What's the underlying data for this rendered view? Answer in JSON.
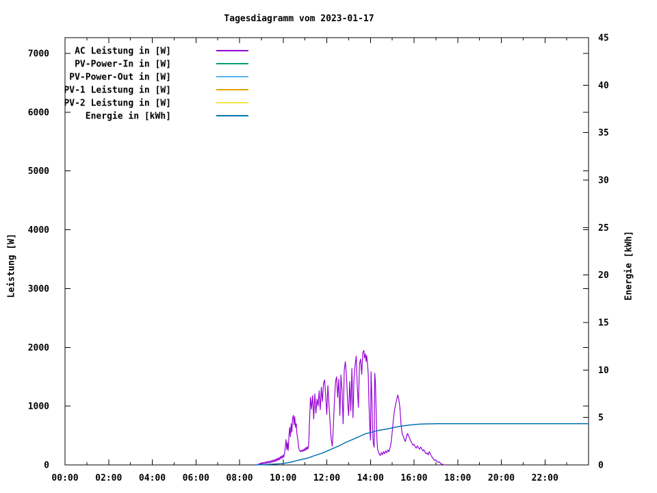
{
  "chart_data": {
    "type": "line",
    "title": "Tagesdiagramm vom 2023-01-17",
    "grid": false,
    "legend_position": "top-left",
    "background_color": "#ffffff",
    "axis_color": "#000000",
    "x_axis": {
      "label": "",
      "unit": "time-of-day",
      "range_hours": [
        0,
        24
      ],
      "major_tick_every_hours": 2,
      "minor_tick_every_hours": 1,
      "tick_labels": [
        "00:00",
        "02:00",
        "04:00",
        "06:00",
        "08:00",
        "10:00",
        "12:00",
        "14:00",
        "16:00",
        "18:00",
        "20:00",
        "22:00"
      ]
    },
    "y_left": {
      "label": "Leistung [W]",
      "range": [
        0,
        7268
      ],
      "ticks": [
        0,
        1000,
        2000,
        3000,
        4000,
        5000,
        6000,
        7000
      ]
    },
    "y_right": {
      "label": "Energie [kWh]",
      "range": [
        0,
        45
      ],
      "ticks": [
        0,
        5,
        10,
        15,
        20,
        25,
        30,
        35,
        40,
        45
      ]
    },
    "series": [
      {
        "name": "AC Leistung in [W]",
        "color": "#9400d3",
        "axis": "left",
        "points": [
          [
            8.85,
            5
          ],
          [
            8.88,
            18
          ],
          [
            8.9,
            8
          ],
          [
            8.93,
            28
          ],
          [
            8.97,
            12
          ],
          [
            9.0,
            35
          ],
          [
            9.03,
            15
          ],
          [
            9.07,
            40
          ],
          [
            9.1,
            20
          ],
          [
            9.13,
            45
          ],
          [
            9.17,
            25
          ],
          [
            9.2,
            52
          ],
          [
            9.23,
            28
          ],
          [
            9.27,
            58
          ],
          [
            9.3,
            32
          ],
          [
            9.33,
            62
          ],
          [
            9.37,
            35
          ],
          [
            9.4,
            68
          ],
          [
            9.43,
            40
          ],
          [
            9.47,
            75
          ],
          [
            9.5,
            45
          ],
          [
            9.53,
            82
          ],
          [
            9.57,
            52
          ],
          [
            9.6,
            90
          ],
          [
            9.63,
            58
          ],
          [
            9.67,
            100
          ],
          [
            9.7,
            68
          ],
          [
            9.73,
            112
          ],
          [
            9.77,
            78
          ],
          [
            9.8,
            125
          ],
          [
            9.83,
            90
          ],
          [
            9.87,
            140
          ],
          [
            9.9,
            105
          ],
          [
            9.93,
            155
          ],
          [
            9.97,
            118
          ],
          [
            10.0,
            170
          ],
          [
            10.03,
            135
          ],
          [
            10.07,
            210
          ],
          [
            10.1,
            300
          ],
          [
            10.13,
            430
          ],
          [
            10.17,
            260
          ],
          [
            10.2,
            380
          ],
          [
            10.23,
            245
          ],
          [
            10.27,
            520
          ],
          [
            10.3,
            640
          ],
          [
            10.33,
            480
          ],
          [
            10.37,
            700
          ],
          [
            10.4,
            560
          ],
          [
            10.43,
            790
          ],
          [
            10.47,
            845
          ],
          [
            10.5,
            680
          ],
          [
            10.53,
            820
          ],
          [
            10.57,
            640
          ],
          [
            10.6,
            700
          ],
          [
            10.63,
            540
          ],
          [
            10.67,
            430
          ],
          [
            10.7,
            330
          ],
          [
            10.73,
            265
          ],
          [
            10.77,
            235
          ],
          [
            10.8,
            225
          ],
          [
            10.83,
            250
          ],
          [
            10.87,
            228
          ],
          [
            10.9,
            260
          ],
          [
            10.93,
            235
          ],
          [
            10.97,
            272
          ],
          [
            11.0,
            242
          ],
          [
            11.03,
            295
          ],
          [
            11.07,
            260
          ],
          [
            11.1,
            310
          ],
          [
            11.13,
            272
          ],
          [
            11.17,
            330
          ],
          [
            11.2,
            650
          ],
          [
            11.25,
            1150
          ],
          [
            11.3,
            950
          ],
          [
            11.35,
            1180
          ],
          [
            11.4,
            780
          ],
          [
            11.45,
            1210
          ],
          [
            11.5,
            880
          ],
          [
            11.55,
            1120
          ],
          [
            11.6,
            1000
          ],
          [
            11.65,
            1260
          ],
          [
            11.7,
            940
          ],
          [
            11.75,
            1320
          ],
          [
            11.8,
            1080
          ],
          [
            11.85,
            1390
          ],
          [
            11.9,
            1444
          ],
          [
            11.95,
            1180
          ],
          [
            12.0,
            860
          ],
          [
            12.05,
            1350
          ],
          [
            12.1,
            1020
          ],
          [
            12.15,
            720
          ],
          [
            12.2,
            440
          ],
          [
            12.25,
            318
          ],
          [
            12.3,
            650
          ],
          [
            12.35,
            1100
          ],
          [
            12.4,
            1420
          ],
          [
            12.45,
            1500
          ],
          [
            12.5,
            1150
          ],
          [
            12.55,
            1460
          ],
          [
            12.6,
            840
          ],
          [
            12.65,
            1530
          ],
          [
            12.7,
            1250
          ],
          [
            12.75,
            700
          ],
          [
            12.8,
            1610
          ],
          [
            12.85,
            1758
          ],
          [
            12.9,
            1520
          ],
          [
            12.95,
            1100
          ],
          [
            13.0,
            840
          ],
          [
            13.05,
            1420
          ],
          [
            13.1,
            920
          ],
          [
            13.15,
            1640
          ],
          [
            13.2,
            803
          ],
          [
            13.25,
            1480
          ],
          [
            13.3,
            1700
          ],
          [
            13.35,
            1850
          ],
          [
            13.4,
            1320
          ],
          [
            13.45,
            980
          ],
          [
            13.5,
            1720
          ],
          [
            13.55,
            1800
          ],
          [
            13.6,
            1540
          ],
          [
            13.65,
            1905
          ],
          [
            13.7,
            1948
          ],
          [
            13.73,
            1820
          ],
          [
            13.77,
            1890
          ],
          [
            13.8,
            1760
          ],
          [
            13.83,
            1860
          ],
          [
            13.87,
            1700
          ],
          [
            13.9,
            1540
          ],
          [
            13.93,
            1100
          ],
          [
            13.97,
            660
          ],
          [
            14.0,
            420
          ],
          [
            14.03,
            1583
          ],
          [
            14.07,
            1100
          ],
          [
            14.1,
            600
          ],
          [
            14.13,
            376
          ],
          [
            14.17,
            300
          ],
          [
            14.2,
            1560
          ],
          [
            14.23,
            1400
          ],
          [
            14.27,
            800
          ],
          [
            14.3,
            420
          ],
          [
            14.33,
            260
          ],
          [
            14.4,
            190
          ],
          [
            14.45,
            160
          ],
          [
            14.5,
            210
          ],
          [
            14.55,
            175
          ],
          [
            14.6,
            225
          ],
          [
            14.65,
            190
          ],
          [
            14.7,
            240
          ],
          [
            14.75,
            205
          ],
          [
            14.8,
            255
          ],
          [
            14.85,
            225
          ],
          [
            14.9,
            290
          ],
          [
            14.95,
            380
          ],
          [
            15.0,
            560
          ],
          [
            15.05,
            760
          ],
          [
            15.1,
            920
          ],
          [
            15.15,
            1020
          ],
          [
            15.2,
            1100
          ],
          [
            15.25,
            1190
          ],
          [
            15.3,
            1120
          ],
          [
            15.35,
            980
          ],
          [
            15.4,
            700
          ],
          [
            15.45,
            540
          ],
          [
            15.5,
            490
          ],
          [
            15.55,
            440
          ],
          [
            15.6,
            400
          ],
          [
            15.65,
            470
          ],
          [
            15.7,
            535
          ],
          [
            15.75,
            500
          ],
          [
            15.8,
            450
          ],
          [
            15.85,
            410
          ],
          [
            15.9,
            370
          ],
          [
            15.95,
            335
          ],
          [
            16.0,
            350
          ],
          [
            16.05,
            310
          ],
          [
            16.1,
            285
          ],
          [
            16.15,
            325
          ],
          [
            16.2,
            295
          ],
          [
            16.25,
            265
          ],
          [
            16.3,
            305
          ],
          [
            16.35,
            275
          ],
          [
            16.4,
            240
          ],
          [
            16.45,
            258
          ],
          [
            16.5,
            220
          ],
          [
            16.55,
            190
          ],
          [
            16.6,
            205
          ],
          [
            16.65,
            170
          ],
          [
            16.7,
            225
          ],
          [
            16.75,
            185
          ],
          [
            16.8,
            150
          ],
          [
            16.85,
            118
          ],
          [
            16.9,
            95
          ],
          [
            16.95,
            75
          ],
          [
            17.0,
            85
          ],
          [
            17.05,
            62
          ],
          [
            17.1,
            45
          ],
          [
            17.15,
            55
          ],
          [
            17.2,
            32
          ],
          [
            17.25,
            18
          ],
          [
            17.3,
            10
          ],
          [
            17.35,
            5
          ],
          [
            17.4,
            2
          ],
          [
            17.45,
            0
          ]
        ]
      },
      {
        "name": "PV-Power-In in [W]",
        "color": "#009e73",
        "axis": "left",
        "points": []
      },
      {
        "name": "PV-Power-Out in [W]",
        "color": "#56b4e9",
        "axis": "left",
        "points": []
      },
      {
        "name": "PV-1 Leistung in [W]",
        "color": "#e69f00",
        "axis": "left",
        "points": []
      },
      {
        "name": "PV-2 Leistung in [W]",
        "color": "#f0e442",
        "axis": "left",
        "points": []
      },
      {
        "name": "Energie in [kWh]",
        "color": "#0072b2",
        "axis": "right",
        "points": [
          [
            8.7,
            0.0
          ],
          [
            9.0,
            0.02
          ],
          [
            9.3,
            0.05
          ],
          [
            9.6,
            0.09
          ],
          [
            9.9,
            0.13
          ],
          [
            10.0,
            0.15
          ],
          [
            10.2,
            0.22
          ],
          [
            10.4,
            0.32
          ],
          [
            10.6,
            0.45
          ],
          [
            10.8,
            0.55
          ],
          [
            11.0,
            0.65
          ],
          [
            11.2,
            0.78
          ],
          [
            11.4,
            0.95
          ],
          [
            11.6,
            1.1
          ],
          [
            11.8,
            1.25
          ],
          [
            12.0,
            1.45
          ],
          [
            12.2,
            1.65
          ],
          [
            12.4,
            1.85
          ],
          [
            12.6,
            2.05
          ],
          [
            12.8,
            2.3
          ],
          [
            13.0,
            2.5
          ],
          [
            13.2,
            2.7
          ],
          [
            13.4,
            2.9
          ],
          [
            13.6,
            3.1
          ],
          [
            13.8,
            3.3
          ],
          [
            14.0,
            3.4
          ],
          [
            14.2,
            3.55
          ],
          [
            14.4,
            3.65
          ],
          [
            14.6,
            3.72
          ],
          [
            14.8,
            3.8
          ],
          [
            15.0,
            3.9
          ],
          [
            15.2,
            4.0
          ],
          [
            15.4,
            4.08
          ],
          [
            15.6,
            4.15
          ],
          [
            15.8,
            4.2
          ],
          [
            16.0,
            4.25
          ],
          [
            16.2,
            4.29
          ],
          [
            16.5,
            4.32
          ],
          [
            17.0,
            4.34
          ],
          [
            18.0,
            4.35
          ],
          [
            20.0,
            4.35
          ],
          [
            22.0,
            4.35
          ],
          [
            24.0,
            4.35
          ]
        ]
      }
    ]
  }
}
